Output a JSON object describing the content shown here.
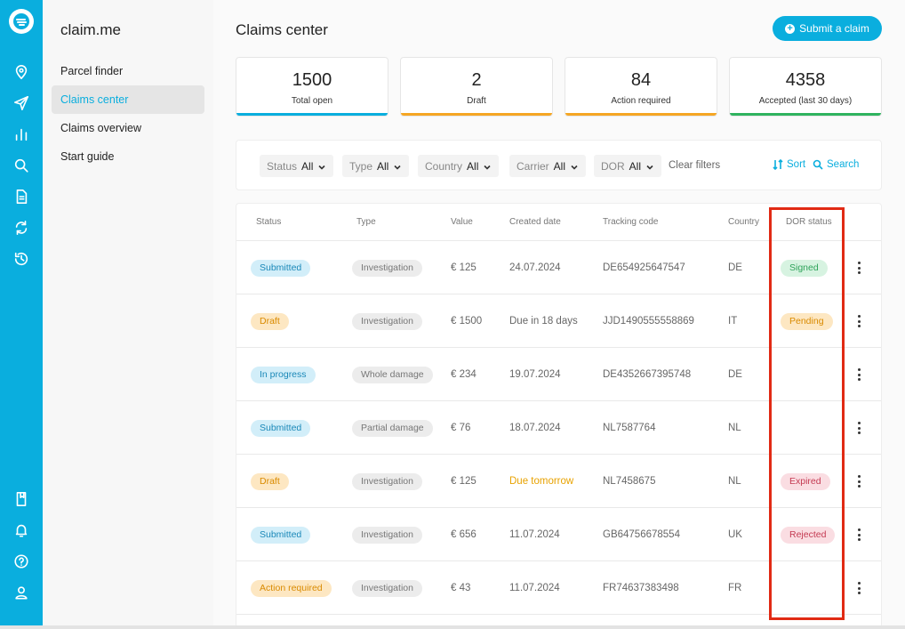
{
  "app": {
    "brand": "claim.me"
  },
  "rail": {
    "icons": [
      "logo-icon",
      "location-icon",
      "send-icon",
      "bar-chart-icon",
      "search-icon",
      "document-icon",
      "sync-icon",
      "history-icon",
      "book-icon",
      "bell-icon",
      "help-icon",
      "user-icon"
    ]
  },
  "sidebar": {
    "items": [
      {
        "label": "Parcel finder"
      },
      {
        "label": "Claims center"
      },
      {
        "label": "Claims overview"
      },
      {
        "label": "Start guide"
      }
    ]
  },
  "header": {
    "title": "Claims center",
    "submit_label": "Submit a claim"
  },
  "stats": [
    {
      "value": "1500",
      "label": "Total open",
      "color": "#0aaede"
    },
    {
      "value": "2",
      "label": "Draft",
      "color": "#f5a623"
    },
    {
      "value": "84",
      "label": "Action required",
      "color": "#f5a623"
    },
    {
      "value": "4358",
      "label": "Accepted (last 30 days)",
      "color": "#2fb35f"
    }
  ],
  "filters": {
    "items": [
      {
        "label": "Status",
        "value": "All"
      },
      {
        "label": "Type",
        "value": "All"
      },
      {
        "label": "Country",
        "value": "All"
      },
      {
        "label": "Carrier",
        "value": "All"
      },
      {
        "label": "DOR",
        "value": "All"
      }
    ],
    "clear_label": "Clear filters",
    "sort_label": "Sort",
    "search_label": "Search"
  },
  "table": {
    "headers": [
      "Status",
      "Type",
      "Value",
      "Created date",
      "Tracking code",
      "Country",
      "DOR status"
    ],
    "rows": [
      {
        "status": "Submitted",
        "type": "Investigation",
        "value": "€ 125",
        "created": "24.07.2024",
        "tracking": "DE654925647547",
        "country": "DE",
        "dor": "Signed"
      },
      {
        "status": "Draft",
        "type": "Investigation",
        "value": "€ 1500",
        "created": "Due in 18 days",
        "tracking": "JJD1490555558869",
        "country": "IT",
        "dor": "Pending"
      },
      {
        "status": "In progress",
        "type": "Whole damage",
        "value": "€ 234",
        "created": "19.07.2024",
        "tracking": "DE4352667395748",
        "country": "DE",
        "dor": ""
      },
      {
        "status": "Submitted",
        "type": "Partial damage",
        "value": "€ 76",
        "created": "18.07.2024",
        "tracking": "NL7587764",
        "country": "NL",
        "dor": ""
      },
      {
        "status": "Draft",
        "type": "Investigation",
        "value": "€ 125",
        "created": "Due tomorrow",
        "tracking": "NL7458675",
        "country": "NL",
        "dor": "Expired"
      },
      {
        "status": "Submitted",
        "type": "Investigation",
        "value": "€ 656",
        "created": "11.07.2024",
        "tracking": "GB64756678554",
        "country": "UK",
        "dor": "Rejected"
      },
      {
        "status": "Action required",
        "type": "Investigation",
        "value": "€ 43",
        "created": "11.07.2024",
        "tracking": "FR74637383498",
        "country": "FR",
        "dor": ""
      }
    ]
  }
}
